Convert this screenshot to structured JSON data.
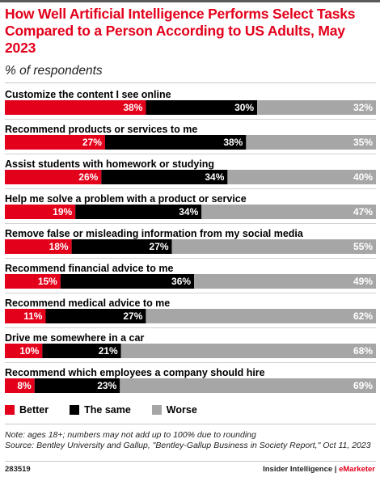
{
  "chart_data": {
    "type": "bar",
    "stacked": true,
    "orientation": "horizontal",
    "title": "How Well Artificial Intelligence Performs Select Tasks Compared to a Person According to US Adults, May 2023",
    "subtitle": "% of respondents",
    "categories": [
      "Customize the content I see online",
      "Recommend products or services to me",
      "Assist students with homework or studying",
      "Help me solve a problem with a product or service",
      "Remove false or misleading information from my social media",
      "Recommend financial advice to me",
      "Recommend medical advice to me",
      "Drive me somewhere in a car",
      "Recommend which employees a company should hire"
    ],
    "series": [
      {
        "name": "Better",
        "color": "#e3001b",
        "values": [
          38,
          27,
          26,
          19,
          18,
          15,
          11,
          10,
          8
        ]
      },
      {
        "name": "The same",
        "color": "#000000",
        "values": [
          30,
          38,
          34,
          34,
          27,
          36,
          27,
          21,
          23
        ]
      },
      {
        "name": "Worse",
        "color": "#a6a6a6",
        "values": [
          32,
          35,
          40,
          47,
          55,
          49,
          62,
          68,
          69
        ]
      }
    ],
    "value_suffix": "%",
    "legend_position": "bottom-left"
  },
  "note": "Note: ages 18+; numbers may not add up to 100% due to rounding",
  "source": "Source: Bentley University and Gallup, \"Bentley-Gallup Business in Society Report,\" Oct 11, 2023",
  "footer": {
    "id": "283519",
    "brand": "Insider Intelligence",
    "separator": " | ",
    "brand_accent": "eMarketer"
  }
}
